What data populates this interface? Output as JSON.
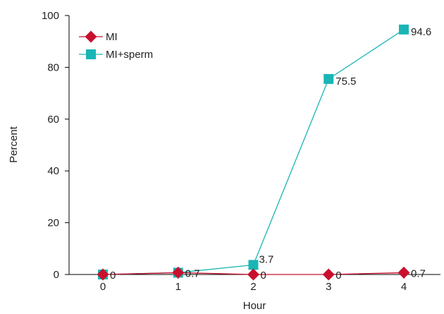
{
  "chart_data": {
    "type": "line",
    "xlabel": "Hour",
    "ylabel": "Percent",
    "x": [
      0,
      1,
      2,
      3,
      4
    ],
    "xlim": [
      0,
      4
    ],
    "ylim": [
      0,
      100
    ],
    "yticks": [
      0,
      20,
      40,
      60,
      80,
      100
    ],
    "xticks": [
      0,
      1,
      2,
      3,
      4
    ],
    "grid": false,
    "legend_position": "top-left",
    "series": [
      {
        "name": "MI",
        "values": [
          0,
          0.7,
          0,
          0,
          0.7
        ],
        "labels": [
          "",
          "",
          "0",
          "0",
          "0.7"
        ],
        "color": "#c8102e",
        "marker": "diamond"
      },
      {
        "name": "MI+sperm",
        "values": [
          0,
          0.7,
          3.7,
          75.5,
          94.6
        ],
        "labels": [
          "0",
          "0.7",
          "3.7",
          "75.5",
          "94.6"
        ],
        "color": "#1ab5b5",
        "marker": "square"
      }
    ]
  }
}
